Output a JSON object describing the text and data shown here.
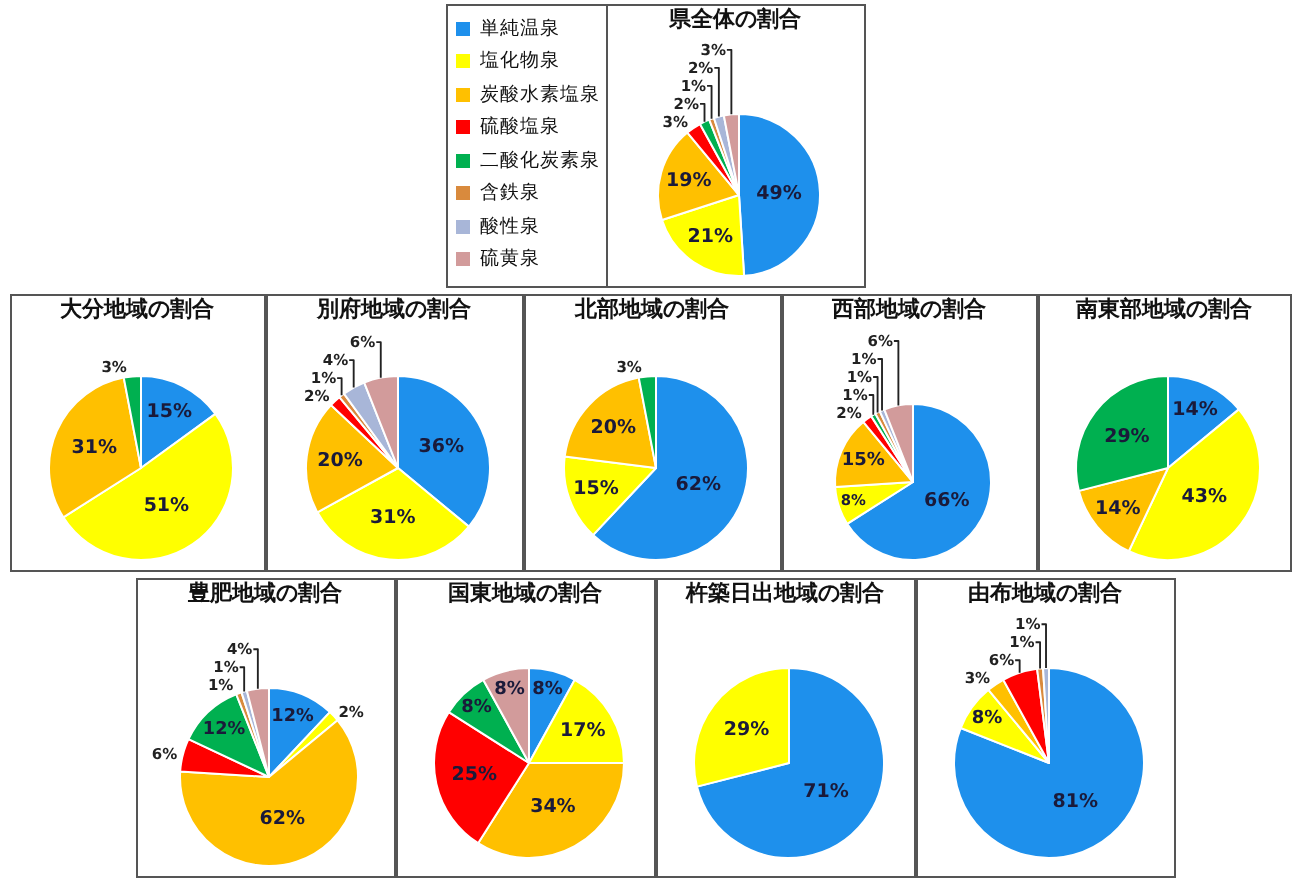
{
  "chart_data": [
    {
      "type": "pie",
      "title": "県全体の割合",
      "legend": "left",
      "categories": [
        "単純温泉",
        "塩化物泉",
        "炭酸水素塩泉",
        "硫酸塩泉",
        "二酸化炭素泉",
        "含鉄泉",
        "酸性泉",
        "硫黄泉"
      ],
      "values": [
        49,
        21,
        19,
        3,
        2,
        1,
        2,
        3
      ],
      "colors": [
        "#1e90ec",
        "#ffff00",
        "#ffc000",
        "#ff0000",
        "#00b050",
        "#d98a3d",
        "#a8b6d8",
        "#d29b9b"
      ],
      "value_labels": [
        "49%",
        "21%",
        "19%",
        "3%",
        "2%",
        "1%",
        "2%",
        "3%"
      ]
    },
    {
      "type": "pie",
      "title": "大分地域の割合",
      "categories": [
        null,
        null,
        null,
        null
      ],
      "values": [
        15,
        51,
        31,
        3
      ],
      "colors": [
        "#1e90ec",
        "#ffff00",
        "#ffc000",
        "#00b050"
      ],
      "value_labels": [
        "15%",
        "51%",
        "31%",
        "3%"
      ]
    },
    {
      "type": "pie",
      "title": "別府地域の割合",
      "categories": [
        null,
        null,
        null,
        null,
        null,
        null,
        null
      ],
      "values": [
        36,
        31,
        20,
        2,
        1,
        4,
        6
      ],
      "colors": [
        "#1e90ec",
        "#ffff00",
        "#ffc000",
        "#ff0000",
        "#d98a3d",
        "#a8b6d8",
        "#d29b9b"
      ],
      "value_labels": [
        "36%",
        "31%",
        "20%",
        "2%",
        "1%",
        "4%",
        "6%"
      ]
    },
    {
      "type": "pie",
      "title": "北部地域の割合",
      "categories": [
        null,
        null,
        null,
        null
      ],
      "values": [
        62,
        15,
        20,
        3
      ],
      "colors": [
        "#1e90ec",
        "#ffff00",
        "#ffc000",
        "#00b050"
      ],
      "value_labels": [
        "62%",
        "15%",
        "20%",
        "3%"
      ]
    },
    {
      "type": "pie",
      "title": "西部地域の割合",
      "categories": [
        null,
        null,
        null,
        null,
        null,
        null,
        null,
        null
      ],
      "values": [
        66,
        8,
        15,
        2,
        1,
        1,
        1,
        6
      ],
      "colors": [
        "#1e90ec",
        "#ffff00",
        "#ffc000",
        "#ff0000",
        "#00b050",
        "#d98a3d",
        "#a8b6d8",
        "#d29b9b"
      ],
      "value_labels": [
        "66%",
        "8%",
        "15%",
        "2%",
        "1%",
        "1%",
        "1%",
        "6%"
      ]
    },
    {
      "type": "pie",
      "title": "南東部地域の割合",
      "categories": [
        null,
        null,
        null,
        null
      ],
      "values": [
        14,
        43,
        14,
        29
      ],
      "colors": [
        "#1e90ec",
        "#ffff00",
        "#ffc000",
        "#00b050"
      ],
      "value_labels": [
        "14%",
        "43%",
        "14%",
        "29%"
      ]
    },
    {
      "type": "pie",
      "title": "豊肥地域の割合",
      "categories": [
        null,
        null,
        null,
        null,
        null,
        null,
        null,
        null
      ],
      "values": [
        12,
        2,
        62,
        6,
        12,
        1,
        1,
        4
      ],
      "colors": [
        "#1e90ec",
        "#ffff00",
        "#ffc000",
        "#ff0000",
        "#00b050",
        "#d98a3d",
        "#a8b6d8",
        "#d29b9b"
      ],
      "value_labels": [
        "12%",
        "2%",
        "62%",
        "6%",
        "12%",
        "1%",
        "1%",
        "4%"
      ]
    },
    {
      "type": "pie",
      "title": "国東地域の割合",
      "categories": [
        null,
        null,
        null,
        null,
        null,
        null
      ],
      "values": [
        8,
        17,
        34,
        25,
        8,
        8
      ],
      "colors": [
        "#1e90ec",
        "#ffff00",
        "#ffc000",
        "#ff0000",
        "#00b050",
        "#d29b9b"
      ],
      "value_labels": [
        "8%",
        "17%",
        "34%",
        "25%",
        "8%",
        "8%"
      ]
    },
    {
      "type": "pie",
      "title": "杵築日出地域の割合",
      "categories": [
        null,
        null
      ],
      "values": [
        71,
        29
      ],
      "colors": [
        "#1e90ec",
        "#ffff00"
      ],
      "value_labels": [
        "71%",
        "29%"
      ]
    },
    {
      "type": "pie",
      "title": "由布地域の割合",
      "categories": [
        null,
        null,
        null,
        null,
        null,
        null
      ],
      "values": [
        81,
        8,
        3,
        6,
        1,
        1
      ],
      "colors": [
        "#1e90ec",
        "#ffff00",
        "#ffc000",
        "#ff0000",
        "#d98a3d",
        "#a8b6d8"
      ],
      "value_labels": [
        "81%",
        "8%",
        "3%",
        "6%",
        "1%",
        "1%"
      ]
    }
  ]
}
